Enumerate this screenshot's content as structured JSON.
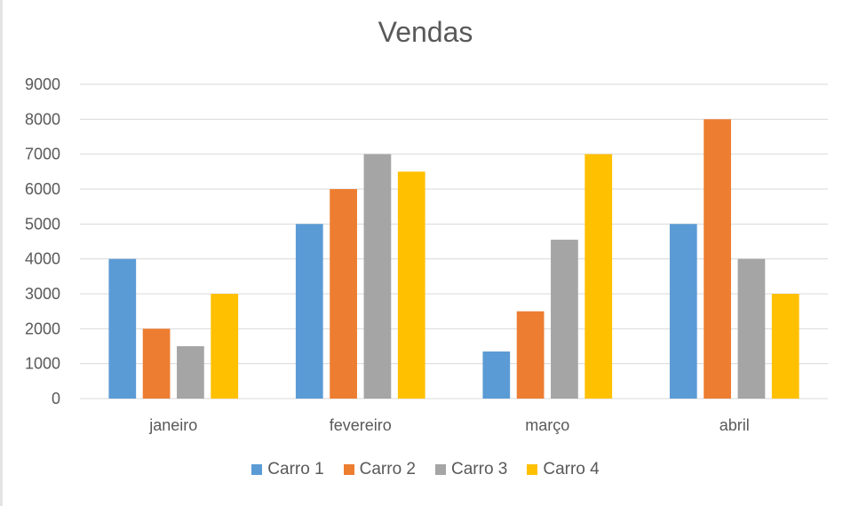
{
  "chart_data": {
    "type": "bar",
    "title": "Vendas",
    "xlabel": "",
    "ylabel": "",
    "categories": [
      "janeiro",
      "fevereiro",
      "março",
      "abril"
    ],
    "series": [
      {
        "name": "Carro 1",
        "color": "#5b9bd5",
        "values": [
          4000,
          5000,
          1350,
          5000
        ]
      },
      {
        "name": "Carro 2",
        "color": "#ed7d31",
        "values": [
          2000,
          6000,
          2500,
          8000
        ]
      },
      {
        "name": "Carro 3",
        "color": "#a5a5a5",
        "values": [
          1500,
          7000,
          4550,
          4000
        ]
      },
      {
        "name": "Carro 4",
        "color": "#ffc000",
        "values": [
          3000,
          6500,
          7000,
          3000
        ]
      }
    ],
    "ylim": [
      0,
      9000
    ],
    "yticks": [
      "0",
      "1000",
      "2000",
      "3000",
      "4000",
      "5000",
      "6000",
      "7000",
      "8000",
      "9000"
    ],
    "grid": true,
    "legend_position": "bottom"
  }
}
